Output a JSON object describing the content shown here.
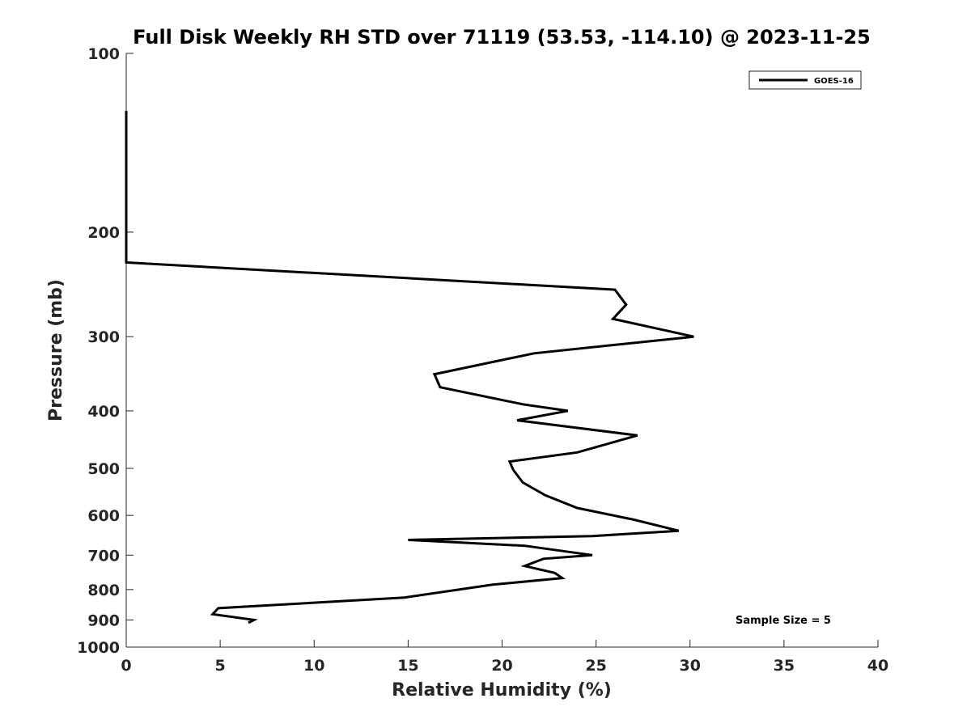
{
  "chart_data": {
    "type": "line",
    "title": "Full Disk Weekly RH STD over 71119 (53.53, -114.10) @ 2023-11-25",
    "xlabel": "Relative Humidity (%)",
    "ylabel": "Pressure (mb)",
    "xlim": [
      0,
      40
    ],
    "ylim": [
      1000,
      100
    ],
    "yscale": "log",
    "xticks": [
      0,
      5,
      10,
      15,
      20,
      25,
      30,
      35,
      40
    ],
    "yticks": [
      100,
      200,
      300,
      400,
      500,
      600,
      700,
      800,
      900,
      1000
    ],
    "grid": false,
    "legend_position": "top-right",
    "annotation": "Sample Size = 5",
    "series": [
      {
        "name": "GOES-16",
        "color": "#000000",
        "x": [
          0,
          0,
          0,
          0,
          0,
          26.0,
          26.6,
          25.9,
          30.2,
          21.7,
          16.4,
          16.7,
          21.1,
          23.5,
          20.8,
          27.2,
          24.0,
          20.4,
          20.6,
          21.1,
          22.3,
          24.0,
          27.0,
          29.4,
          24.8,
          15.0,
          21.2,
          24.8,
          22.2,
          21.2,
          22.8,
          23.2,
          19.5,
          14.8,
          4.9,
          4.6,
          6.8,
          6.5
        ],
        "y": [
          125,
          150,
          175,
          200,
          225,
          250,
          265,
          280,
          300,
          320,
          347,
          365,
          390,
          400,
          415,
          440,
          470,
          487,
          503,
          528,
          555,
          583,
          610,
          637,
          650,
          660,
          675,
          700,
          710,
          730,
          750,
          765,
          785,
          825,
          860,
          880,
          900,
          910
        ]
      }
    ]
  }
}
